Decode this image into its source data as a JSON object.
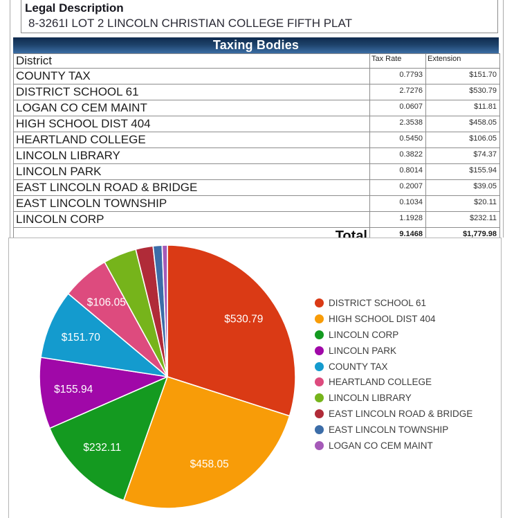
{
  "legal": {
    "title": "Legal Description",
    "value": "8-3261I LOT 2 LINCOLN CHRISTIAN COLLEGE FIFTH PLAT"
  },
  "table": {
    "title": "Taxing Bodies",
    "columns": {
      "district": "District",
      "tax_rate": "Tax Rate",
      "extension": "Extension"
    },
    "rows": [
      {
        "district": "COUNTY TAX",
        "tax_rate": "0.7793",
        "extension": "$151.70"
      },
      {
        "district": "DISTRICT SCHOOL 61",
        "tax_rate": "2.7276",
        "extension": "$530.79"
      },
      {
        "district": "LOGAN CO CEM MAINT",
        "tax_rate": "0.0607",
        "extension": "$11.81"
      },
      {
        "district": "HIGH SCHOOL DIST 404",
        "tax_rate": "2.3538",
        "extension": "$458.05"
      },
      {
        "district": "HEARTLAND COLLEGE",
        "tax_rate": "0.5450",
        "extension": "$106.05"
      },
      {
        "district": "LINCOLN LIBRARY",
        "tax_rate": "0.3822",
        "extension": "$74.37"
      },
      {
        "district": "LINCOLN PARK",
        "tax_rate": "0.8014",
        "extension": "$155.94"
      },
      {
        "district": "EAST LINCOLN ROAD & BRIDGE",
        "tax_rate": "0.2007",
        "extension": "$39.05"
      },
      {
        "district": "EAST LINCOLN TOWNSHIP",
        "tax_rate": "0.1034",
        "extension": "$20.11"
      },
      {
        "district": "LINCOLN CORP",
        "tax_rate": "1.1928",
        "extension": "$232.11"
      }
    ],
    "total": {
      "label": "Total",
      "tax_rate": "9.1468",
      "extension": "$1,779.98"
    }
  },
  "chart_data": {
    "type": "pie",
    "title": "",
    "total": 1779.98,
    "start_angle_deg": 0,
    "direction": "clockwise",
    "legend_position": "right",
    "slices": [
      {
        "name": "DISTRICT SCHOOL 61",
        "value": 530.79,
        "label": "$530.79",
        "color": "#da3a15",
        "label_visible": true
      },
      {
        "name": "HIGH SCHOOL DIST 404",
        "value": 458.05,
        "label": "$458.05",
        "color": "#f89c08",
        "label_visible": true
      },
      {
        "name": "LINCOLN CORP",
        "value": 232.11,
        "label": "$232.11",
        "color": "#149a20",
        "label_visible": true
      },
      {
        "name": "LINCOLN PARK",
        "value": 155.94,
        "label": "$155.94",
        "color": "#a008a8",
        "label_visible": true
      },
      {
        "name": "COUNTY TAX",
        "value": 151.7,
        "label": "$151.70",
        "color": "#149bce",
        "label_visible": true
      },
      {
        "name": "HEARTLAND COLLEGE",
        "value": 106.05,
        "label": "$106.05",
        "color": "#dd4b7e",
        "label_visible": true
      },
      {
        "name": "LINCOLN LIBRARY",
        "value": 74.37,
        "label": "$74.37",
        "color": "#76b41b",
        "label_visible": false
      },
      {
        "name": "EAST LINCOLN ROAD & BRIDGE",
        "value": 39.05,
        "label": "$39.05",
        "color": "#b02b38",
        "label_visible": false
      },
      {
        "name": "EAST LINCOLN TOWNSHIP",
        "value": 20.11,
        "label": "$20.11",
        "color": "#3c6da8",
        "label_visible": false
      },
      {
        "name": "LOGAN CO CEM MAINT",
        "value": 11.81,
        "label": "$11.81",
        "color": "#a55ab8",
        "label_visible": false
      }
    ]
  }
}
